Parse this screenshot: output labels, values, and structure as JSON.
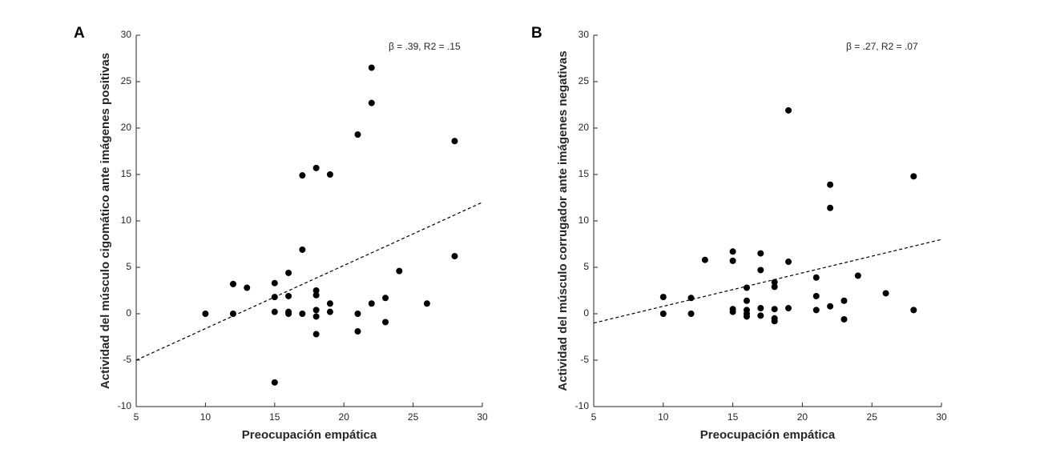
{
  "chart_data": [
    {
      "type": "scatter",
      "panel_label": "A",
      "annotation": "β = .39, R2 = .15",
      "x_label": "Preocupación empática",
      "y_label": "Actividad del músculo cigomático ante imágenes positivas",
      "xlim": [
        5,
        30
      ],
      "ylim": [
        -10,
        30
      ],
      "xticks": [
        5,
        10,
        15,
        20,
        25,
        30
      ],
      "yticks": [
        -10,
        -5,
        0,
        5,
        10,
        15,
        20,
        25,
        30
      ],
      "color": "#000000",
      "x": [
        10,
        12,
        12,
        13,
        15,
        15,
        15,
        15,
        16,
        16,
        16,
        16,
        17,
        17,
        17,
        18,
        18,
        18,
        18,
        18,
        18,
        19,
        19,
        19,
        21,
        21,
        21,
        22,
        22,
        22,
        23,
        23,
        24,
        26,
        28,
        28
      ],
      "y": [
        0,
        3.2,
        0,
        2.8,
        3.3,
        1.8,
        0.2,
        -7.4,
        4.4,
        1.9,
        0.2,
        0,
        14.9,
        6.9,
        0,
        15.7,
        2.5,
        2,
        0.4,
        -0.3,
        -2.2,
        15,
        1.1,
        0.2,
        19.3,
        0,
        -1.9,
        26.5,
        22.7,
        1.1,
        1.7,
        -0.9,
        4.6,
        1.1,
        18.6,
        6.2
      ],
      "trend": {
        "x": [
          5,
          30
        ],
        "y": [
          -5,
          12
        ]
      }
    },
    {
      "type": "scatter",
      "panel_label": "B",
      "annotation": "β = .27, R2 = .07",
      "x_label": "Preocupación empática",
      "y_label": "Actividad del músculo corrugador ante imágenes negativas",
      "xlim": [
        5,
        30
      ],
      "ylim": [
        -10,
        30
      ],
      "xticks": [
        5,
        10,
        15,
        20,
        25,
        30
      ],
      "yticks": [
        -10,
        -5,
        0,
        5,
        10,
        15,
        20,
        25,
        30
      ],
      "color": "#000000",
      "x": [
        10,
        10,
        12,
        12,
        13,
        15,
        15,
        15,
        15,
        16,
        16,
        16,
        16,
        16,
        17,
        17,
        17,
        17,
        18,
        18,
        18,
        18,
        18,
        19,
        19,
        19,
        21,
        21,
        21,
        22,
        22,
        22,
        23,
        23,
        24,
        26,
        28,
        28
      ],
      "y": [
        1.8,
        0,
        1.7,
        0,
        5.8,
        6.7,
        5.7,
        0.5,
        0.2,
        2.8,
        1.4,
        0.4,
        0,
        -0.3,
        6.5,
        4.7,
        0.6,
        -0.2,
        3.4,
        2.9,
        0.5,
        -0.5,
        -0.8,
        21.9,
        5.6,
        0.6,
        3.9,
        1.9,
        0.4,
        13.9,
        11.4,
        0.8,
        1.4,
        -0.6,
        4.1,
        2.2,
        14.8,
        0.4
      ],
      "trend": {
        "x": [
          5,
          30
        ],
        "y": [
          -1,
          8
        ]
      }
    }
  ]
}
